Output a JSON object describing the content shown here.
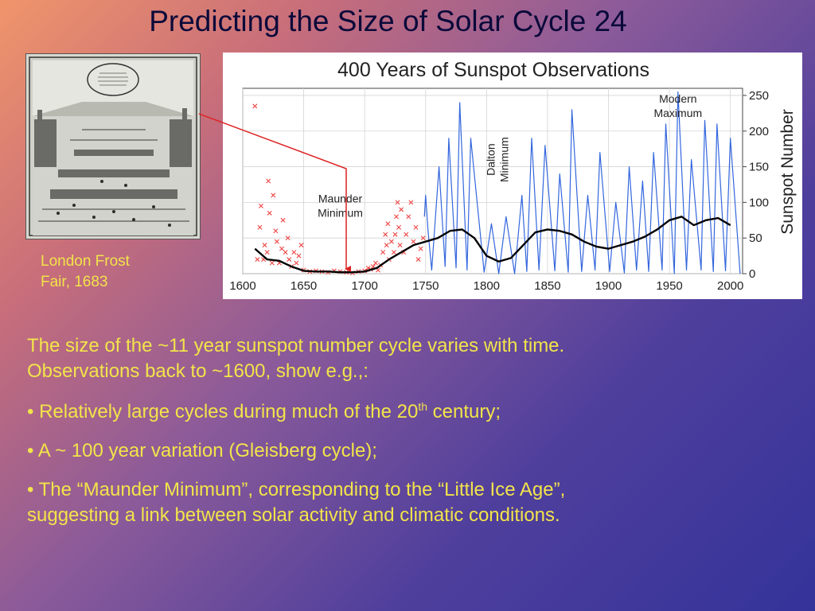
{
  "slide": {
    "title": "Predicting the Size of Solar Cycle 24",
    "caption_line1": "London Frost",
    "caption_line2": "Fair, 1683",
    "intro_line1": "The size of the ~11 year sunspot number cycle varies with time.",
    "intro_line2": "Observations back to ~1600, show e.g.,:",
    "bullet1_before": "• Relatively large cycles during much of the 20",
    "bullet1_sup": "th",
    "bullet1_after": " century;",
    "bullet2": "• A ~ 100 year variation (Gleisberg cycle);",
    "bullet3_line1": "• The “Maunder Minimum”, corresponding to the “Little Ice Age”,",
    "bullet3_line2": "suggesting a link between solar activity and climatic conditions."
  },
  "colors": {
    "title": "#0a0a3a",
    "highlight_text": "#f2e44a",
    "series_monthly": "#3366dd",
    "series_early": "#ee4444",
    "series_smoothed": "#000000",
    "pointer": "#dd2222"
  },
  "chart_data": {
    "type": "line",
    "title": "400 Years of Sunspot Observations",
    "ylabel": "Sunspot Number",
    "xlabel": "",
    "xlim": [
      1600,
      2010
    ],
    "ylim": [
      0,
      260
    ],
    "x_ticks": [
      1600,
      1650,
      1700,
      1750,
      1800,
      1850,
      1900,
      1950,
      2000
    ],
    "y_ticks": [
      0,
      50,
      100,
      150,
      200,
      250
    ],
    "annotations": [
      {
        "text": "Modern Maximum",
        "lines": [
          "Modern",
          "Maximum"
        ],
        "x": 1957,
        "y": 240
      },
      {
        "text": "Dalton Minimum",
        "lines": [
          "Dalton",
          "Minimum"
        ],
        "x": 1812,
        "y": 160,
        "rotated": true
      },
      {
        "text": "Maunder Minimum",
        "lines": [
          "Maunder",
          "Minimum"
        ],
        "x": 1680,
        "y": 100
      }
    ],
    "series": [
      {
        "kind": "early-observations",
        "markers": "x",
        "x": [
          1610,
          1612,
          1614,
          1615,
          1617,
          1618,
          1620,
          1621,
          1622,
          1624,
          1625,
          1627,
          1628,
          1630,
          1632,
          1633,
          1635,
          1637,
          1638,
          1640,
          1642,
          1644,
          1646,
          1648,
          1650,
          1655,
          1660,
          1665,
          1670,
          1675,
          1680,
          1685,
          1690,
          1695,
          1700,
          1703,
          1705,
          1707,
          1709,
          1711,
          1713,
          1715,
          1717,
          1718,
          1719,
          1720,
          1722,
          1724,
          1725,
          1726,
          1727,
          1728,
          1729,
          1730,
          1732,
          1734,
          1736,
          1738,
          1740,
          1742,
          1744,
          1746,
          1748
        ],
        "y": [
          235,
          20,
          65,
          95,
          20,
          40,
          30,
          130,
          85,
          15,
          110,
          60,
          45,
          15,
          35,
          75,
          30,
          50,
          20,
          10,
          30,
          15,
          25,
          40,
          5,
          3,
          4,
          3,
          2,
          4,
          3,
          2,
          1,
          3,
          4,
          8,
          6,
          10,
          15,
          5,
          12,
          30,
          55,
          40,
          70,
          20,
          45,
          30,
          55,
          80,
          100,
          65,
          40,
          90,
          30,
          55,
          80,
          100,
          45,
          65,
          20,
          35,
          50
        ]
      },
      {
        "kind": "monthly",
        "x": [
          1749,
          1750,
          1752,
          1755,
          1761,
          1766,
          1769,
          1775,
          1778,
          1784,
          1787,
          1798,
          1804,
          1810,
          1816,
          1823,
          1829,
          1833,
          1837,
          1843,
          1848,
          1856,
          1860,
          1867,
          1870,
          1878,
          1883,
          1889,
          1893,
          1901,
          1906,
          1913,
          1917,
          1923,
          1928,
          1933,
          1937,
          1944,
          1947,
          1954,
          1957,
          1964,
          1968,
          1976,
          1979,
          1986,
          1989,
          1996,
          2000,
          2008
        ],
        "y": [
          80,
          110,
          60,
          5,
          150,
          10,
          190,
          8,
          240,
          5,
          190,
          2,
          70,
          0,
          80,
          0,
          110,
          3,
          190,
          5,
          180,
          4,
          140,
          2,
          230,
          3,
          110,
          5,
          170,
          3,
          100,
          1,
          150,
          5,
          130,
          3,
          170,
          5,
          210,
          0,
          255,
          5,
          160,
          5,
          215,
          3,
          210,
          4,
          190,
          0
        ]
      },
      {
        "kind": "smoothed",
        "x": [
          1610,
          1620,
          1630,
          1640,
          1650,
          1660,
          1670,
          1680,
          1690,
          1700,
          1710,
          1720,
          1730,
          1740,
          1750,
          1760,
          1770,
          1780,
          1790,
          1800,
          1810,
          1820,
          1830,
          1840,
          1850,
          1860,
          1870,
          1880,
          1890,
          1900,
          1910,
          1920,
          1930,
          1940,
          1950,
          1960,
          1970,
          1980,
          1990,
          2000
        ],
        "y": [
          35,
          20,
          18,
          10,
          4,
          3,
          3,
          2,
          2,
          3,
          8,
          20,
          30,
          40,
          45,
          50,
          60,
          62,
          50,
          25,
          17,
          22,
          40,
          58,
          62,
          60,
          55,
          45,
          38,
          35,
          40,
          45,
          52,
          62,
          75,
          80,
          68,
          75,
          78,
          68
        ]
      }
    ]
  }
}
